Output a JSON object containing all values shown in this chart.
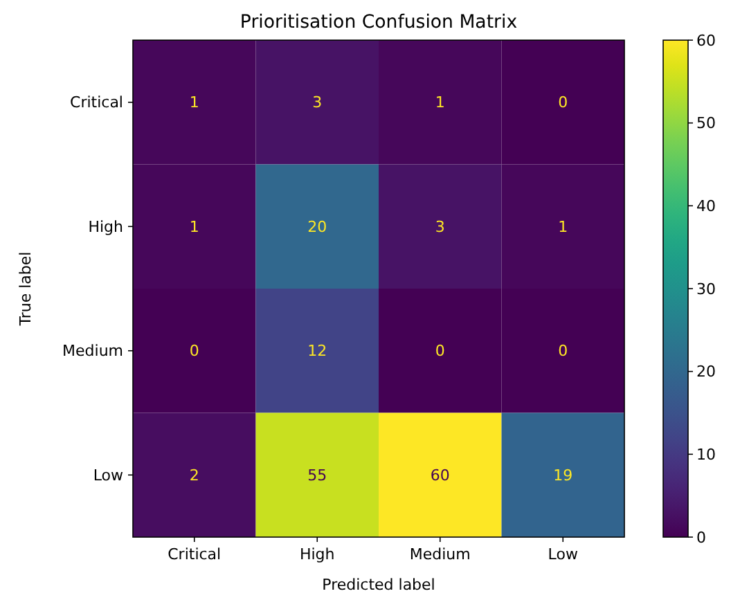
{
  "chart_data": {
    "type": "heatmap",
    "title": "Prioritisation Confusion Matrix",
    "xlabel": "Predicted label",
    "ylabel": "True label",
    "categories": [
      "Critical",
      "High",
      "Medium",
      "Low"
    ],
    "y_categories": [
      "Critical",
      "High",
      "Medium",
      "Low"
    ],
    "cells": [
      [
        1,
        3,
        1,
        0
      ],
      [
        1,
        20,
        3,
        1
      ],
      [
        0,
        12,
        0,
        0
      ],
      [
        2,
        55,
        60,
        19
      ]
    ],
    "clim": [
      0,
      60
    ],
    "cticks": [
      0,
      10,
      20,
      30,
      40,
      50,
      60
    ],
    "data_labels": true
  }
}
